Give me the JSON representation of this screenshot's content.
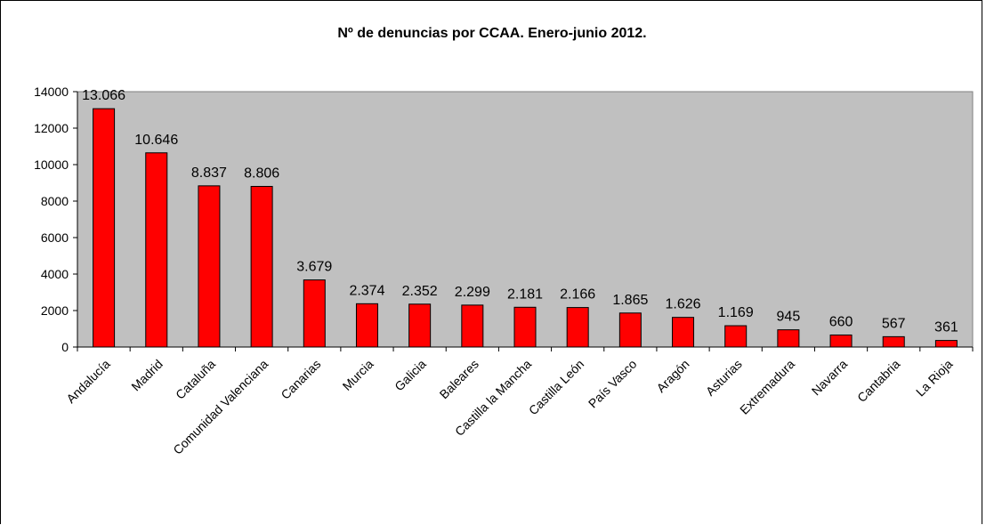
{
  "colors": {
    "plot_bg": "#c0c0c0",
    "bar": "#ff0000",
    "bar_stroke": "#000000"
  },
  "chart_data": {
    "type": "bar",
    "title": "Nº de denuncias por CCAA. Enero-junio 2012.",
    "categories": [
      "Andalucía",
      "Madrid",
      "Cataluña",
      "Comunidad Valenciana",
      "Canarias",
      "Murcia",
      "Galicia",
      "Baleares",
      "Castilla la Mancha",
      "Castilla León",
      "País Vasco",
      "Aragón",
      "Asturias",
      "Extremadura",
      "Navarra",
      "Cantabria",
      "La Rioja"
    ],
    "values": [
      13066,
      10646,
      8837,
      8806,
      3679,
      2374,
      2352,
      2299,
      2181,
      2166,
      1865,
      1626,
      1169,
      945,
      660,
      567,
      361
    ],
    "data_labels": [
      "13.066",
      "10.646",
      "8.837",
      "8.806",
      "3.679",
      "2.374",
      "2.352",
      "2.299",
      "2.181",
      "2.166",
      "1.865",
      "1.626",
      "1.169",
      "945",
      "660",
      "567",
      "361"
    ],
    "ylim": [
      0,
      14000
    ],
    "yticks": [
      0,
      2000,
      4000,
      6000,
      8000,
      10000,
      12000,
      14000
    ],
    "ytick_labels": [
      "0",
      "2000",
      "4000",
      "6000",
      "8000",
      "10000",
      "12000",
      "14000"
    ],
    "grid": false,
    "legend": "none"
  }
}
